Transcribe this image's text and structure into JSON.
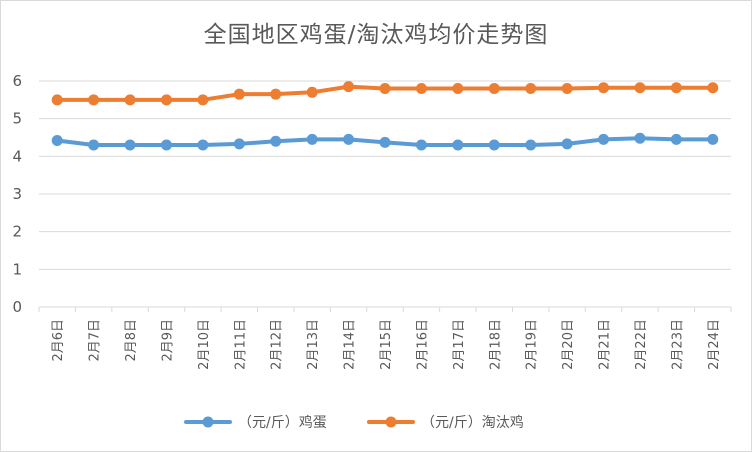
{
  "chart_data": {
    "type": "line",
    "title": "全国地区鸡蛋/淘汰鸡均价走势图",
    "xlabel": "",
    "ylabel": "",
    "categories": [
      "2月6日",
      "2月7日",
      "2月8日",
      "2月9日",
      "2月10日",
      "2月11日",
      "2月12日",
      "2月13日",
      "2月14日",
      "2月15日",
      "2月16日",
      "2月17日",
      "2月18日",
      "2月19日",
      "2月20日",
      "2月21日",
      "2月22日",
      "2月23日",
      "2月24日"
    ],
    "ylim": [
      0,
      6
    ],
    "yticks": [
      "0",
      "1",
      "2",
      "3",
      "4",
      "5",
      "6"
    ],
    "grid": true,
    "legend_position": "bottom",
    "series": [
      {
        "name": "（元/斤）鸡蛋",
        "color": "#5b9bd5",
        "values": [
          4.42,
          4.3,
          4.3,
          4.3,
          4.3,
          4.33,
          4.4,
          4.45,
          4.45,
          4.37,
          4.3,
          4.3,
          4.3,
          4.3,
          4.33,
          4.45,
          4.48,
          4.45,
          4.45
        ]
      },
      {
        "name": "（元/斤）淘汰鸡",
        "color": "#ed7d31",
        "values": [
          5.5,
          5.5,
          5.5,
          5.5,
          5.5,
          5.65,
          5.65,
          5.7,
          5.85,
          5.8,
          5.8,
          5.8,
          5.8,
          5.8,
          5.8,
          5.82,
          5.82,
          5.82,
          5.82
        ]
      }
    ]
  }
}
